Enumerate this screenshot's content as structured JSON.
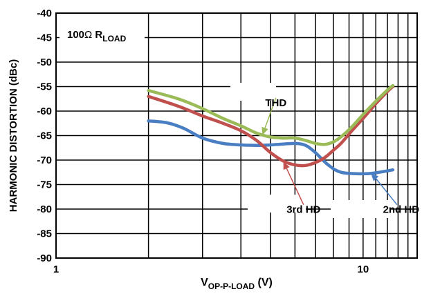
{
  "chart_data": {
    "type": "line",
    "x_scale": "log",
    "xlim": [
      1,
      15
    ],
    "ylim": [
      -90,
      -40
    ],
    "grid": true,
    "ylabel": "HARMONIC DISTORTION (dBc)",
    "xlabel": {
      "main": "V",
      "sub": "OP-P-LOAD",
      "unit": " (V)"
    },
    "x_ticks": [
      {
        "value": 1,
        "label": "1"
      },
      {
        "value": 10,
        "label": "10"
      }
    ],
    "y_ticks": [
      -90,
      -85,
      -80,
      -75,
      -70,
      -65,
      -60,
      -55,
      -50,
      -45,
      -40
    ],
    "y_tick_labels": [
      "-90",
      "-85",
      "-80",
      "-75",
      "-70",
      "-65",
      "-60",
      "-55",
      "-50",
      "-45",
      "-40"
    ],
    "condition_label": {
      "value": "100",
      "omega": "Ω",
      "r": " R",
      "sub": "LOAD"
    },
    "series": [
      {
        "name": "2nd HD",
        "color": "#4a7ec2",
        "points": [
          [
            2,
            -62
          ],
          [
            2.3,
            -62.4
          ],
          [
            2.6,
            -63.5
          ],
          [
            3,
            -65.5
          ],
          [
            3.5,
            -66.6
          ],
          [
            4,
            -66.9
          ],
          [
            4.6,
            -67
          ],
          [
            5.3,
            -66.8
          ],
          [
            6,
            -66.6
          ],
          [
            6.5,
            -67
          ],
          [
            7,
            -68.5
          ],
          [
            7.7,
            -71
          ],
          [
            8.5,
            -72.5
          ],
          [
            10,
            -72.8
          ],
          [
            11,
            -72.6
          ],
          [
            12.5,
            -72
          ]
        ]
      },
      {
        "name": "3rd HD",
        "color": "#c0504d",
        "points": [
          [
            2,
            -57
          ],
          [
            2.5,
            -59
          ],
          [
            3,
            -61
          ],
          [
            3.5,
            -62.5
          ],
          [
            4,
            -64
          ],
          [
            4.5,
            -66
          ],
          [
            5,
            -68.5
          ],
          [
            5.5,
            -70.2
          ],
          [
            6,
            -71
          ],
          [
            6.5,
            -71.1
          ],
          [
            7,
            -70.5
          ],
          [
            7.5,
            -69.5
          ],
          [
            8,
            -68
          ],
          [
            8.5,
            -66.5
          ],
          [
            9.2,
            -64
          ],
          [
            10,
            -61.5
          ],
          [
            11,
            -58.5
          ],
          [
            12,
            -56
          ],
          [
            12.5,
            -55
          ]
        ]
      },
      {
        "name": "THD",
        "color": "#9bbb59",
        "points": [
          [
            2,
            -55.8
          ],
          [
            2.5,
            -57.5
          ],
          [
            3,
            -59.5
          ],
          [
            3.5,
            -61.5
          ],
          [
            4,
            -63
          ],
          [
            4.5,
            -64.5
          ],
          [
            5,
            -65.3
          ],
          [
            5.5,
            -65.5
          ],
          [
            6,
            -65.5
          ],
          [
            6.5,
            -66
          ],
          [
            7,
            -66.6
          ],
          [
            7.5,
            -66.8
          ],
          [
            8,
            -66.3
          ],
          [
            8.5,
            -65.2
          ],
          [
            9.2,
            -63.2
          ],
          [
            10,
            -60.7
          ],
          [
            11,
            -58
          ],
          [
            12,
            -55.7
          ],
          [
            12.5,
            -54.8
          ]
        ]
      }
    ],
    "annotations": [
      {
        "label": "THD",
        "series": "THD",
        "target": [
          4.7,
          -64.9
        ],
        "text_at": [
          5.2,
          -59
        ],
        "anchor": "middle"
      },
      {
        "label": "3rd HD",
        "series": "3rd HD",
        "target": [
          5.5,
          -70.3
        ],
        "text_at": [
          6.4,
          -80.8
        ],
        "anchor": "middle"
      },
      {
        "label": "2nd HD",
        "series": "2nd HD",
        "target": [
          10.6,
          -72.7
        ],
        "text_at": [
          13.3,
          -80.8
        ],
        "anchor": "middle"
      }
    ]
  }
}
